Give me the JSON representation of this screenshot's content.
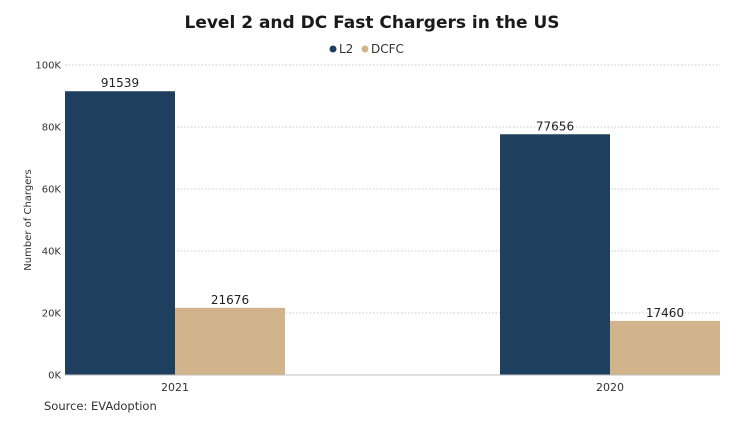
{
  "chart_data": {
    "type": "bar",
    "title": "Level 2 and DC Fast Chargers in the US",
    "xlabel": "",
    "ylabel": "Number of Chargers",
    "categories": [
      "2021",
      "2020"
    ],
    "series": [
      {
        "name": "L2",
        "color": "#1f3f5e",
        "values": [
          91539,
          77656
        ]
      },
      {
        "name": "DCFC",
        "color": "#d2b48c",
        "values": [
          21676,
          17460
        ]
      }
    ],
    "ylim": [
      0,
      100000
    ],
    "yticks": [
      0,
      20000,
      40000,
      60000,
      80000,
      100000
    ],
    "ytick_labels": [
      "0K",
      "20K",
      "40K",
      "60K",
      "80K",
      "100K"
    ],
    "grid": true,
    "legend_position": "top-center",
    "source": "Source: EVAdoption"
  }
}
